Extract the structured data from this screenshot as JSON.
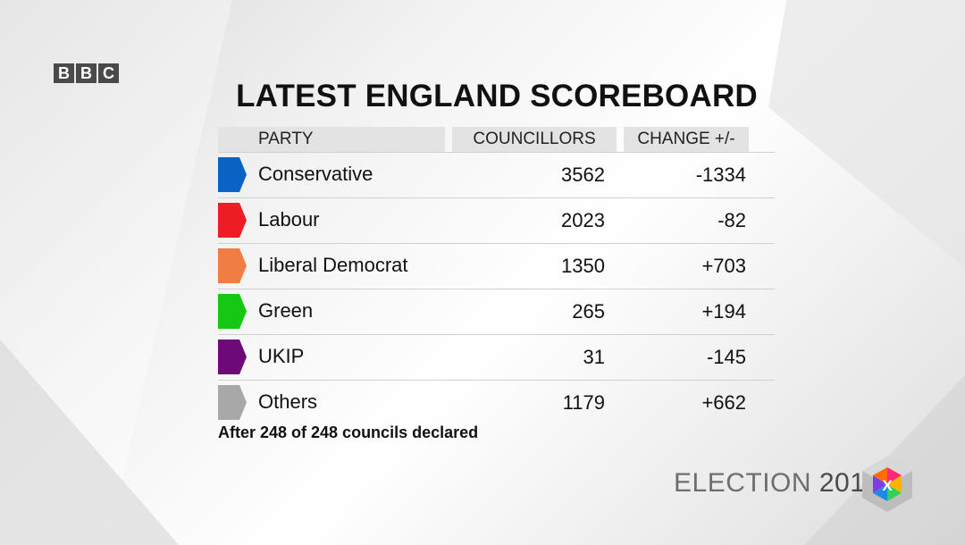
{
  "broadcaster": {
    "letters": [
      "B",
      "B",
      "C"
    ]
  },
  "title": "LATEST ENGLAND SCOREBOARD",
  "table": {
    "headers": {
      "party": "PARTY",
      "councillors": "COUNCILLORS",
      "change": "CHANGE +/-"
    },
    "rows": [
      {
        "party": "Conservative",
        "councillors": "3562",
        "change": "-1334",
        "color": "#0a63c4"
      },
      {
        "party": "Labour",
        "councillors": "2023",
        "change": "-82",
        "color": "#ee1c25"
      },
      {
        "party": "Liberal Democrat",
        "councillors": "1350",
        "change": "+703",
        "color": "#f07d44"
      },
      {
        "party": "Green",
        "councillors": "265",
        "change": "+194",
        "color": "#14c814"
      },
      {
        "party": "UKIP",
        "councillors": "31",
        "change": "-145",
        "color": "#6e0a78"
      },
      {
        "party": "Others",
        "councillors": "1179",
        "change": "+662",
        "color": "#a8a8a8"
      }
    ]
  },
  "footnote": "After 248 of 248 councils declared",
  "branding": {
    "election_word": "ELECTION",
    "year": "2019",
    "cube_letter": "X"
  }
}
